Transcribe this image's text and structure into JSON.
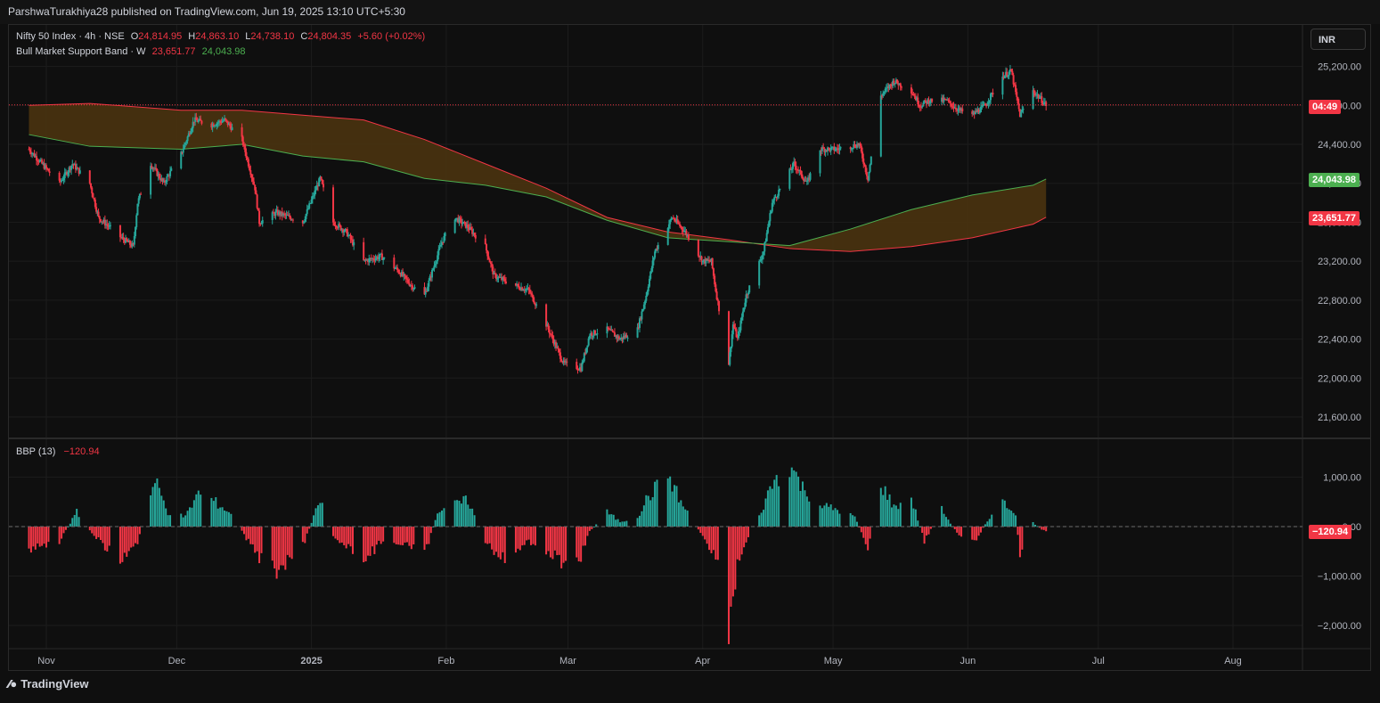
{
  "header": {
    "publisher": "ParshwaTurakhiya28 published on TradingView.com, Jun 19, 2025 13:10 UTC+5:30"
  },
  "footer": {
    "brand": "TradingView",
    "logo_icon": "tradingview-logo-icon"
  },
  "currency": "INR",
  "legend": {
    "symbol": "Nifty 50 Index · 4h · NSE",
    "o_label": "O",
    "o": "24,814.95",
    "h_label": "H",
    "h": "24,863.10",
    "l_label": "L",
    "l": "24,738.10",
    "c_label": "C",
    "c": "24,804.35",
    "change": "+5.60 (+0.02%)",
    "band_label": "Bull Market Support Band · W",
    "band_low": "23,651.77",
    "band_high": "24,043.98",
    "bbp_label": "BBP (13)",
    "bbp_value": "−120.94"
  },
  "tags": {
    "countdown": "04:49",
    "band_high": "24,043.98",
    "band_low": "23,651.77",
    "bbp": "−120.94"
  },
  "colors": {
    "up": "#26a69a",
    "down": "#f23645",
    "band_fill": "#4a3310",
    "band_upper": "#f23645",
    "band_lower": "#4caf50",
    "countdown_tag": "#f23645"
  },
  "chart_data": [
    {
      "type": "candlestick",
      "title": "Nifty 50 Index · 4h · NSE",
      "y_ticks": [
        "25,200.00",
        "24,800.00",
        "24,400.00",
        "24,000.00",
        "23,600.00",
        "23,200.00",
        "22,800.00",
        "22,400.00",
        "22,000.00",
        "21,600.00"
      ],
      "x_ticks": [
        "Nov",
        "Dec",
        "2025",
        "Feb",
        "Mar",
        "Apr",
        "May",
        "Jun",
        "Jul",
        "Aug"
      ],
      "ylim": [
        21500,
        25400
      ],
      "close_path": [
        {
          "d": "2024-10-28",
          "v": 24350
        },
        {
          "d": "2024-10-31",
          "v": 24200
        },
        {
          "d": "2024-11-04",
          "v": 24000
        },
        {
          "d": "2024-11-07",
          "v": 24200
        },
        {
          "d": "2024-11-11",
          "v": 24000
        },
        {
          "d": "2024-11-13",
          "v": 23650
        },
        {
          "d": "2024-11-18",
          "v": 23450
        },
        {
          "d": "2024-11-21",
          "v": 23350
        },
        {
          "d": "2024-11-22",
          "v": 23800
        },
        {
          "d": "2024-11-25",
          "v": 24200
        },
        {
          "d": "2024-11-28",
          "v": 24000
        },
        {
          "d": "2024-12-02",
          "v": 24300
        },
        {
          "d": "2024-12-05",
          "v": 24650
        },
        {
          "d": "2024-12-09",
          "v": 24600
        },
        {
          "d": "2024-12-12",
          "v": 24650
        },
        {
          "d": "2024-12-16",
          "v": 24450
        },
        {
          "d": "2024-12-19",
          "v": 23950
        },
        {
          "d": "2024-12-20",
          "v": 23600
        },
        {
          "d": "2024-12-24",
          "v": 23700
        },
        {
          "d": "2024-12-30",
          "v": 23600
        },
        {
          "d": "2025-01-03",
          "v": 24050
        },
        {
          "d": "2025-01-06",
          "v": 23600
        },
        {
          "d": "2025-01-09",
          "v": 23500
        },
        {
          "d": "2025-01-13",
          "v": 23200
        },
        {
          "d": "2025-01-17",
          "v": 23250
        },
        {
          "d": "2025-01-21",
          "v": 23100
        },
        {
          "d": "2025-01-24",
          "v": 22950
        },
        {
          "d": "2025-01-27",
          "v": 22850
        },
        {
          "d": "2025-01-31",
          "v": 23400
        },
        {
          "d": "2025-02-03",
          "v": 23650
        },
        {
          "d": "2025-02-06",
          "v": 23550
        },
        {
          "d": "2025-02-10",
          "v": 23350
        },
        {
          "d": "2025-02-12",
          "v": 23050
        },
        {
          "d": "2025-02-17",
          "v": 22950
        },
        {
          "d": "2025-02-20",
          "v": 22900
        },
        {
          "d": "2025-02-24",
          "v": 22550
        },
        {
          "d": "2025-02-28",
          "v": 22150
        },
        {
          "d": "2025-03-04",
          "v": 22100
        },
        {
          "d": "2025-03-06",
          "v": 22450
        },
        {
          "d": "2025-03-10",
          "v": 22500
        },
        {
          "d": "2025-03-13",
          "v": 22400
        },
        {
          "d": "2025-03-17",
          "v": 22500
        },
        {
          "d": "2025-03-19",
          "v": 22850
        },
        {
          "d": "2025-03-21",
          "v": 23300
        },
        {
          "d": "2025-03-25",
          "v": 23650
        },
        {
          "d": "2025-03-28",
          "v": 23500
        },
        {
          "d": "2025-04-01",
          "v": 23200
        },
        {
          "d": "2025-04-03",
          "v": 23200
        },
        {
          "d": "2025-04-04",
          "v": 22900
        },
        {
          "d": "2025-04-07",
          "v": 22150
        },
        {
          "d": "2025-04-08",
          "v": 22550
        },
        {
          "d": "2025-04-09",
          "v": 22400
        },
        {
          "d": "2025-04-11",
          "v": 22850
        },
        {
          "d": "2025-04-15",
          "v": 23300
        },
        {
          "d": "2025-04-17",
          "v": 23800
        },
        {
          "d": "2025-04-22",
          "v": 24200
        },
        {
          "d": "2025-04-25",
          "v": 24000
        },
        {
          "d": "2025-04-28",
          "v": 24350
        },
        {
          "d": "2025-05-02",
          "v": 24350
        },
        {
          "d": "2025-05-07",
          "v": 24400
        },
        {
          "d": "2025-05-09",
          "v": 24050
        },
        {
          "d": "2025-05-12",
          "v": 24900
        },
        {
          "d": "2025-05-15",
          "v": 25050
        },
        {
          "d": "2025-05-19",
          "v": 24950
        },
        {
          "d": "2025-05-21",
          "v": 24800
        },
        {
          "d": "2025-05-23",
          "v": 24850
        },
        {
          "d": "2025-05-27",
          "v": 24850
        },
        {
          "d": "2025-05-30",
          "v": 24750
        },
        {
          "d": "2025-06-02",
          "v": 24700
        },
        {
          "d": "2025-06-05",
          "v": 24800
        },
        {
          "d": "2025-06-09",
          "v": 25100
        },
        {
          "d": "2025-06-11",
          "v": 25150
        },
        {
          "d": "2025-06-13",
          "v": 24700
        },
        {
          "d": "2025-06-16",
          "v": 24950
        },
        {
          "d": "2025-06-19",
          "v": 24804
        }
      ],
      "band": {
        "name": "Bull Market Support Band · W",
        "upper": [
          {
            "d": "2024-10-28",
            "v": 24800
          },
          {
            "d": "2024-11-11",
            "v": 24820
          },
          {
            "d": "2024-12-02",
            "v": 24750
          },
          {
            "d": "2024-12-16",
            "v": 24750
          },
          {
            "d": "2024-12-30",
            "v": 24700
          },
          {
            "d": "2025-01-13",
            "v": 24650
          },
          {
            "d": "2025-01-27",
            "v": 24450
          },
          {
            "d": "2025-02-10",
            "v": 24200
          },
          {
            "d": "2025-02-24",
            "v": 23950
          },
          {
            "d": "2025-03-10",
            "v": 23650
          },
          {
            "d": "2025-03-24",
            "v": 23500
          },
          {
            "d": "2025-04-07",
            "v": 23420
          },
          {
            "d": "2025-04-21",
            "v": 23330
          },
          {
            "d": "2025-05-05",
            "v": 23300
          },
          {
            "d": "2025-05-19",
            "v": 23350
          },
          {
            "d": "2025-06-02",
            "v": 23440
          },
          {
            "d": "2025-06-16",
            "v": 23580
          },
          {
            "d": "2025-06-19",
            "v": 23651.77
          }
        ],
        "lower": [
          {
            "d": "2024-10-28",
            "v": 24500
          },
          {
            "d": "2024-11-11",
            "v": 24380
          },
          {
            "d": "2024-12-02",
            "v": 24350
          },
          {
            "d": "2024-12-16",
            "v": 24400
          },
          {
            "d": "2024-12-30",
            "v": 24280
          },
          {
            "d": "2025-01-13",
            "v": 24220
          },
          {
            "d": "2025-01-27",
            "v": 24050
          },
          {
            "d": "2025-02-10",
            "v": 23980
          },
          {
            "d": "2025-02-24",
            "v": 23860
          },
          {
            "d": "2025-03-10",
            "v": 23620
          },
          {
            "d": "2025-03-24",
            "v": 23440
          },
          {
            "d": "2025-04-07",
            "v": 23400
          },
          {
            "d": "2025-04-21",
            "v": 23360
          },
          {
            "d": "2025-05-05",
            "v": 23530
          },
          {
            "d": "2025-05-19",
            "v": 23730
          },
          {
            "d": "2025-06-02",
            "v": 23880
          },
          {
            "d": "2025-06-16",
            "v": 23980
          },
          {
            "d": "2025-06-19",
            "v": 24043.98
          }
        ]
      },
      "last_price": 24804.35
    },
    {
      "type": "bar",
      "title": "BBP (13)",
      "y_ticks": [
        "1,000.00",
        "0.00",
        "−1,000.00",
        "−2,000.00"
      ],
      "ylim": [
        -2550,
        1500
      ],
      "path": [
        {
          "d": "2024-10-28",
          "v": -450
        },
        {
          "d": "2024-11-04",
          "v": -300
        },
        {
          "d": "2024-11-08",
          "v": 300
        },
        {
          "d": "2024-11-12",
          "v": -200
        },
        {
          "d": "2024-11-18",
          "v": -700
        },
        {
          "d": "2024-11-22",
          "v": -350
        },
        {
          "d": "2024-11-26",
          "v": 950
        },
        {
          "d": "2024-11-29",
          "v": 300
        },
        {
          "d": "2024-12-03",
          "v": 200
        },
        {
          "d": "2024-12-06",
          "v": 700
        },
        {
          "d": "2024-12-10",
          "v": 500
        },
        {
          "d": "2024-12-13",
          "v": 300
        },
        {
          "d": "2024-12-16",
          "v": -100
        },
        {
          "d": "2024-12-20",
          "v": -650
        },
        {
          "d": "2024-12-24",
          "v": -900
        },
        {
          "d": "2024-12-30",
          "v": -400
        },
        {
          "d": "2025-01-03",
          "v": 550
        },
        {
          "d": "2025-01-06",
          "v": -200
        },
        {
          "d": "2025-01-10",
          "v": -500
        },
        {
          "d": "2025-01-14",
          "v": -650
        },
        {
          "d": "2025-01-17",
          "v": -300
        },
        {
          "d": "2025-01-22",
          "v": -350
        },
        {
          "d": "2025-01-27",
          "v": -600
        },
        {
          "d": "2025-01-30",
          "v": 300
        },
        {
          "d": "2025-02-03",
          "v": 450
        },
        {
          "d": "2025-02-06",
          "v": 550
        },
        {
          "d": "2025-02-10",
          "v": -300
        },
        {
          "d": "2025-02-13",
          "v": -700
        },
        {
          "d": "2025-02-17",
          "v": -500
        },
        {
          "d": "2025-02-20",
          "v": -300
        },
        {
          "d": "2025-02-24",
          "v": -500
        },
        {
          "d": "2025-02-28",
          "v": -750
        },
        {
          "d": "2025-03-04",
          "v": -600
        },
        {
          "d": "2025-03-06",
          "v": -100
        },
        {
          "d": "2025-03-10",
          "v": 300
        },
        {
          "d": "2025-03-13",
          "v": 100
        },
        {
          "d": "2025-03-17",
          "v": 200
        },
        {
          "d": "2025-03-19",
          "v": 550
        },
        {
          "d": "2025-03-24",
          "v": 1100
        },
        {
          "d": "2025-03-27",
          "v": 500
        },
        {
          "d": "2025-04-01",
          "v": -200
        },
        {
          "d": "2025-04-04",
          "v": -600
        },
        {
          "d": "2025-04-07",
          "v": -2050
        },
        {
          "d": "2025-04-09",
          "v": -800
        },
        {
          "d": "2025-04-11",
          "v": -300
        },
        {
          "d": "2025-04-14",
          "v": 200
        },
        {
          "d": "2025-04-17",
          "v": 900
        },
        {
          "d": "2025-04-21",
          "v": 1300
        },
        {
          "d": "2025-04-24",
          "v": 800
        },
        {
          "d": "2025-04-28",
          "v": 450
        },
        {
          "d": "2025-05-02",
          "v": 350
        },
        {
          "d": "2025-05-06",
          "v": 200
        },
        {
          "d": "2025-05-09",
          "v": -450
        },
        {
          "d": "2025-05-12",
          "v": 900
        },
        {
          "d": "2025-05-15",
          "v": 400
        },
        {
          "d": "2025-05-19",
          "v": 600
        },
        {
          "d": "2025-05-22",
          "v": -300
        },
        {
          "d": "2025-05-26",
          "v": 350
        },
        {
          "d": "2025-05-30",
          "v": -200
        },
        {
          "d": "2025-06-03",
          "v": -250
        },
        {
          "d": "2025-06-06",
          "v": 200
        },
        {
          "d": "2025-06-09",
          "v": 500
        },
        {
          "d": "2025-06-12",
          "v": 300
        },
        {
          "d": "2025-06-13",
          "v": -600
        },
        {
          "d": "2025-06-16",
          "v": 80
        },
        {
          "d": "2025-06-19",
          "v": -120.94
        }
      ],
      "last_value": -120.94
    }
  ]
}
